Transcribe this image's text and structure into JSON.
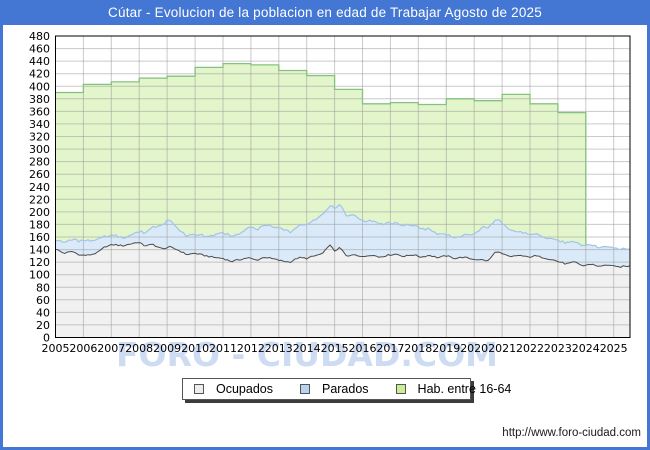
{
  "window": {
    "title": "Cútar - Evolucion de la poblacion en edad de Trabajar Agosto de 2025"
  },
  "watermark": "FORO - CIUDAD.COM",
  "footer": {
    "url": "http://www.foro-ciudad.com"
  },
  "colors": {
    "frame_blue": "#4377d3",
    "grid": "#cccccc",
    "plot_border": "#000000",
    "hab_fill": "#e3f5cb",
    "hab_line": "#85c27f",
    "parados_fill": "#daeaf9",
    "parados_line": "#a3c3e8",
    "ocupados_fill": "#f1f1f1",
    "ocupados_line": "#4a4a4a"
  },
  "legend": {
    "items": [
      {
        "label": "Ocupados",
        "swatch": "#ededed"
      },
      {
        "label": "Parados",
        "swatch": "#b7d3f0"
      },
      {
        "label": "Hab. entre 16-64",
        "swatch": "#c9ee95"
      }
    ]
  },
  "chart_data": {
    "type": "area",
    "title": "Cútar - Evolucion de la poblacion en edad de Trabajar Agosto de 2025",
    "xlabel": "",
    "ylabel": "",
    "grid": true,
    "legend_position": "bottom",
    "xlim": [
      2005,
      2025.583
    ],
    "ylim": [
      0,
      480
    ],
    "y_tick_step": 20,
    "x_ticks": [
      2005,
      2006,
      2007,
      2008,
      2009,
      2010,
      2011,
      2012,
      2013,
      2014,
      2015,
      2016,
      2017,
      2018,
      2019,
      2020,
      2021,
      2022,
      2023,
      2024,
      2025
    ],
    "series": [
      {
        "id": "hab_16_64",
        "name": "Hab. entre 16-64",
        "type": "step-area",
        "fill": "#e3f5cb",
        "line_color": "#85c27f",
        "years": [
          2005,
          2006,
          2007,
          2008,
          2009,
          2010,
          2011,
          2012,
          2013,
          2014,
          2015,
          2016,
          2017,
          2018,
          2019,
          2020,
          2021,
          2022,
          2023
        ],
        "values": [
          390,
          403,
          407,
          413,
          416,
          430,
          436,
          434,
          425,
          417,
          395,
          372,
          374,
          371,
          380,
          377,
          387,
          372,
          358
        ],
        "ends_at": 2024
      },
      {
        "id": "parados",
        "name": "Parados",
        "type": "area-stacked-on-ocupados",
        "fill": "#daeaf9",
        "line_color": "#a3c3e8",
        "noise_amp": 2.6,
        "anchor_t": [
          2005.0,
          2005.5,
          2006.0,
          2006.5,
          2007.0,
          2007.5,
          2008.0,
          2008.4,
          2008.8,
          2009.0,
          2009.3,
          2009.6,
          2010.0,
          2010.5,
          2011.0,
          2011.5,
          2012.0,
          2012.5,
          2013.0,
          2013.5,
          2014.0,
          2014.5,
          2014.8,
          2015.1,
          2015.4,
          2015.7,
          2016.0,
          2016.5,
          2017.0,
          2017.5,
          2018.0,
          2018.5,
          2019.0,
          2019.5,
          2020.0,
          2020.35,
          2020.9,
          2021.3,
          2021.7,
          2022.0,
          2022.5,
          2023.0,
          2023.5,
          2024.0,
          2024.5,
          2025.0,
          2025.583
        ],
        "anchor_v": [
          15,
          18,
          24,
          20,
          15,
          13,
          17,
          25,
          38,
          44,
          36,
          30,
          30,
          32,
          41,
          41,
          49,
          50,
          52,
          48,
          54,
          60,
          62,
          70,
          64,
          63,
          57,
          54,
          50,
          49,
          46,
          41,
          33,
          33,
          40,
          54,
          50,
          42,
          37,
          36,
          33,
          34,
          32,
          32,
          30,
          29,
          27
        ]
      },
      {
        "id": "ocupados",
        "name": "Ocupados",
        "type": "area",
        "fill": "#f1f1f1",
        "line_color": "#4a4a4a",
        "noise_amp": 2.4,
        "anchor_t": [
          2005.0,
          2005.3,
          2005.6,
          2005.9,
          2006.2,
          2006.5,
          2006.8,
          2007.1,
          2007.4,
          2007.7,
          2007.95,
          2008.2,
          2008.5,
          2008.8,
          2009.1,
          2009.4,
          2009.7,
          2010.0,
          2010.3,
          2010.6,
          2011.0,
          2011.3,
          2011.6,
          2011.9,
          2012.2,
          2012.5,
          2012.8,
          2013.1,
          2013.4,
          2013.7,
          2014.0,
          2014.3,
          2014.6,
          2014.8,
          2015.0,
          2015.2,
          2015.45,
          2015.7,
          2016.0,
          2016.3,
          2016.6,
          2016.9,
          2017.2,
          2017.5,
          2017.8,
          2018.1,
          2018.4,
          2018.7,
          2019.0,
          2019.3,
          2019.6,
          2019.9,
          2020.2,
          2020.5,
          2020.8,
          2021.0,
          2021.3,
          2021.6,
          2021.9,
          2022.2,
          2022.5,
          2022.8,
          2023.0,
          2023.3,
          2023.6,
          2023.9,
          2024.2,
          2024.5,
          2024.8,
          2025.1,
          2025.583
        ],
        "anchor_v": [
          141,
          134,
          137,
          131,
          131,
          135,
          145,
          148,
          146,
          149,
          152,
          146,
          148,
          141,
          144,
          139,
          132,
          134,
          131,
          128,
          126,
          121,
          124,
          127,
          123,
          128,
          125,
          122,
          120,
          127,
          126,
          130,
          134,
          148,
          138,
          143,
          128,
          133,
          128,
          132,
          128,
          131,
          133,
          129,
          132,
          128,
          131,
          127,
          130,
          126,
          128,
          125,
          124,
          122,
          138,
          133,
          128,
          131,
          128,
          130,
          127,
          124,
          121,
          117,
          120,
          114,
          117,
          113,
          116,
          112,
          114
        ]
      }
    ]
  }
}
